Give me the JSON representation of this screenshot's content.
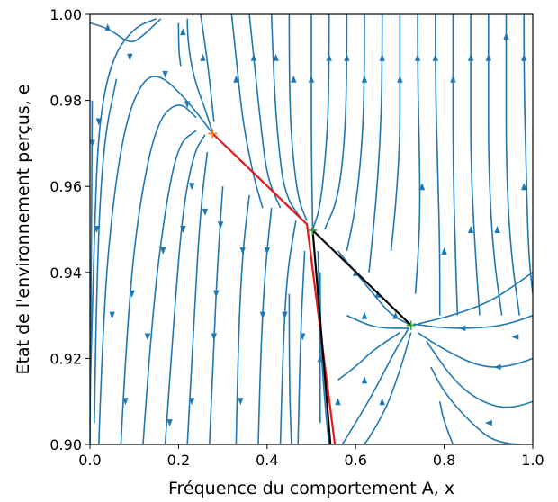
{
  "chart_data": {
    "type": "streamplot",
    "xlabel": "Fréquence du comportement A, x",
    "ylabel": "Etat de l'environnement perçus, e",
    "xlim": [
      0.0,
      1.0
    ],
    "ylim": [
      0.9,
      1.0
    ],
    "x_ticks": [
      "0.0",
      "0.2",
      "0.4",
      "0.6",
      "0.8",
      "1.0"
    ],
    "y_ticks": [
      "0.90",
      "0.92",
      "0.94",
      "0.96",
      "0.98",
      "1.00"
    ],
    "x_tick_values": [
      0.0,
      0.2,
      0.4,
      0.6,
      0.8,
      1.0
    ],
    "y_tick_values": [
      0.9,
      0.92,
      0.94,
      0.96,
      0.98,
      1.0
    ],
    "grid": false,
    "colors": {
      "stream": "#1f77b4",
      "red_path": "#e31a1c",
      "black_path": "#000000",
      "marker": "#2ca02c",
      "marker_orange": "#ff7f0e"
    },
    "series": [
      {
        "color": "#e31a1c",
        "points": [
          [
            0.277,
            0.9723
          ],
          [
            0.49,
            0.9512
          ],
          [
            0.553,
            0.9
          ]
        ]
      },
      {
        "color": "#000000",
        "points": [
          [
            0.725,
            0.9277
          ],
          [
            0.503,
            0.9498
          ],
          [
            0.543,
            0.9
          ]
        ]
      }
    ],
    "markers": [
      {
        "x": 0.277,
        "y": 0.9723,
        "color": "#ff7f0e",
        "symbol": "+"
      },
      {
        "x": 0.503,
        "y": 0.9498,
        "color": "#2ca02c",
        "symbol": "+"
      },
      {
        "x": 0.725,
        "y": 0.9277,
        "color": "#2ca02c",
        "symbol": "+"
      }
    ],
    "streamlines": [
      [
        [
          0.02,
          0.9
        ],
        [
          0.03,
          0.93
        ],
        [
          0.05,
          0.955
        ],
        [
          0.08,
          0.975
        ],
        [
          0.12,
          0.985
        ],
        [
          0.16,
          0.986
        ],
        [
          0.22,
          0.98
        ],
        [
          0.277,
          0.9723
        ]
      ],
      [
        [
          0.0,
          0.91
        ],
        [
          0.01,
          0.95
        ],
        [
          0.02,
          0.975
        ],
        [
          0.05,
          0.99
        ],
        [
          0.1,
          0.997
        ],
        [
          0.15,
          0.999
        ]
      ],
      [
        [
          0.07,
          0.9
        ],
        [
          0.085,
          0.93
        ],
        [
          0.11,
          0.955
        ],
        [
          0.15,
          0.975
        ],
        [
          0.2,
          0.98
        ],
        [
          0.24,
          0.976
        ]
      ],
      [
        [
          0.12,
          0.9
        ],
        [
          0.14,
          0.93
        ],
        [
          0.17,
          0.955
        ],
        [
          0.2,
          0.97
        ],
        [
          0.24,
          0.973
        ]
      ],
      [
        [
          0.17,
          0.9
        ],
        [
          0.19,
          0.93
        ],
        [
          0.21,
          0.955
        ],
        [
          0.235,
          0.968
        ],
        [
          0.26,
          0.972
        ]
      ],
      [
        [
          0.22,
          0.9
        ],
        [
          0.235,
          0.93
        ],
        [
          0.25,
          0.955
        ],
        [
          0.265,
          0.968
        ]
      ],
      [
        [
          0.27,
          0.9
        ],
        [
          0.28,
          0.925
        ],
        [
          0.29,
          0.945
        ],
        [
          0.3,
          0.96
        ]
      ],
      [
        [
          0.33,
          0.9
        ],
        [
          0.335,
          0.925
        ],
        [
          0.345,
          0.945
        ],
        [
          0.36,
          0.958
        ]
      ],
      [
        [
          0.38,
          0.9
        ],
        [
          0.385,
          0.92
        ],
        [
          0.395,
          0.94
        ],
        [
          0.41,
          0.955
        ]
      ],
      [
        [
          0.43,
          0.9
        ],
        [
          0.435,
          0.92
        ],
        [
          0.445,
          0.94
        ],
        [
          0.465,
          0.952
        ]
      ],
      [
        [
          0.52,
          0.905
        ],
        [
          0.52,
          0.925
        ],
        [
          0.515,
          0.945
        ]
      ],
      [
        [
          0.47,
          0.9
        ],
        [
          0.475,
          0.925
        ],
        [
          0.485,
          0.945
        ]
      ],
      [
        [
          0.01,
          0.905
        ],
        [
          0.015,
          0.94
        ],
        [
          0.03,
          0.97
        ],
        [
          0.06,
          0.985
        ]
      ],
      [
        [
          0.0,
          0.9
        ],
        [
          0.003,
          0.94
        ],
        [
          0.005,
          0.98
        ]
      ],
      [
        [
          0.0,
          0.998
        ],
        [
          0.04,
          0.997
        ],
        [
          0.09,
          0.993
        ],
        [
          0.12,
          0.995
        ],
        [
          0.16,
          0.999
        ]
      ],
      [
        [
          0.22,
          0.999
        ],
        [
          0.22,
          0.994
        ],
        [
          0.235,
          0.985
        ],
        [
          0.26,
          0.978
        ],
        [
          0.277,
          0.9725
        ]
      ],
      [
        [
          0.25,
          1.0
        ],
        [
          0.26,
          0.993
        ],
        [
          0.27,
          0.985
        ],
        [
          0.28,
          0.975
        ]
      ],
      [
        [
          0.2,
          0.998
        ],
        [
          0.2,
          0.992
        ],
        [
          0.205,
          0.988
        ]
      ],
      [
        [
          0.32,
          1.0
        ],
        [
          0.33,
          0.99
        ],
        [
          0.345,
          0.975
        ],
        [
          0.37,
          0.962
        ],
        [
          0.39,
          0.955
        ]
      ],
      [
        [
          0.36,
          1.0
        ],
        [
          0.37,
          0.99
        ],
        [
          0.385,
          0.975
        ],
        [
          0.4,
          0.962
        ],
        [
          0.43,
          0.955
        ]
      ],
      [
        [
          0.41,
          1.0
        ],
        [
          0.415,
          0.985
        ],
        [
          0.425,
          0.97
        ],
        [
          0.44,
          0.958
        ],
        [
          0.48,
          0.952
        ]
      ],
      [
        [
          0.45,
          1.0
        ],
        [
          0.45,
          0.985
        ],
        [
          0.455,
          0.97
        ],
        [
          0.47,
          0.957
        ],
        [
          0.49,
          0.952
        ]
      ],
      [
        [
          0.5,
          1.0
        ],
        [
          0.5,
          0.985
        ],
        [
          0.5,
          0.97
        ],
        [
          0.503,
          0.95
        ]
      ],
      [
        [
          0.54,
          1.0
        ],
        [
          0.54,
          0.985
        ],
        [
          0.535,
          0.97
        ],
        [
          0.52,
          0.955
        ],
        [
          0.503,
          0.95
        ]
      ],
      [
        [
          0.58,
          1.0
        ],
        [
          0.58,
          0.985
        ],
        [
          0.575,
          0.97
        ],
        [
          0.56,
          0.957
        ],
        [
          0.53,
          0.95
        ]
      ],
      [
        [
          0.62,
          1.0
        ],
        [
          0.62,
          0.985
        ],
        [
          0.615,
          0.97
        ],
        [
          0.6,
          0.955
        ],
        [
          0.58,
          0.945
        ]
      ],
      [
        [
          0.66,
          1.0
        ],
        [
          0.66,
          0.985
        ],
        [
          0.655,
          0.97
        ],
        [
          0.645,
          0.955
        ],
        [
          0.63,
          0.94
        ]
      ],
      [
        [
          0.7,
          1.0
        ],
        [
          0.7,
          0.985
        ],
        [
          0.7,
          0.97
        ],
        [
          0.69,
          0.955
        ],
        [
          0.68,
          0.945
        ]
      ],
      [
        [
          0.74,
          1.0
        ],
        [
          0.74,
          0.985
        ],
        [
          0.745,
          0.965
        ],
        [
          0.745,
          0.95
        ],
        [
          0.735,
          0.935
        ]
      ],
      [
        [
          0.78,
          1.0
        ],
        [
          0.78,
          0.985
        ],
        [
          0.785,
          0.965
        ],
        [
          0.79,
          0.945
        ],
        [
          0.79,
          0.93
        ]
      ],
      [
        [
          0.82,
          1.0
        ],
        [
          0.82,
          0.985
        ],
        [
          0.82,
          0.965
        ],
        [
          0.825,
          0.945
        ],
        [
          0.83,
          0.93
        ]
      ],
      [
        [
          0.86,
          1.0
        ],
        [
          0.86,
          0.985
        ],
        [
          0.86,
          0.965
        ],
        [
          0.87,
          0.945
        ],
        [
          0.88,
          0.93
        ]
      ],
      [
        [
          0.9,
          1.0
        ],
        [
          0.9,
          0.985
        ],
        [
          0.9,
          0.965
        ],
        [
          0.91,
          0.945
        ],
        [
          0.93,
          0.93
        ]
      ],
      [
        [
          0.94,
          1.0
        ],
        [
          0.94,
          0.985
        ],
        [
          0.94,
          0.965
        ],
        [
          0.95,
          0.945
        ],
        [
          0.97,
          0.93
        ]
      ],
      [
        [
          0.98,
          1.0
        ],
        [
          0.98,
          0.985
        ],
        [
          0.985,
          0.965
        ],
        [
          0.99,
          0.945
        ],
        [
          1.0,
          0.935
        ]
      ],
      [
        [
          0.56,
          0.945
        ],
        [
          0.6,
          0.94
        ],
        [
          0.64,
          0.935
        ],
        [
          0.68,
          0.93
        ],
        [
          0.72,
          0.928
        ]
      ],
      [
        [
          0.58,
          0.93
        ],
        [
          0.62,
          0.928
        ],
        [
          0.66,
          0.927
        ],
        [
          0.72,
          0.927
        ]
      ],
      [
        [
          0.56,
          0.915
        ],
        [
          0.6,
          0.918
        ],
        [
          0.64,
          0.922
        ],
        [
          0.7,
          0.926
        ]
      ],
      [
        [
          0.57,
          0.9
        ],
        [
          0.6,
          0.905
        ],
        [
          0.64,
          0.912
        ],
        [
          0.69,
          0.922
        ],
        [
          0.72,
          0.927
        ]
      ],
      [
        [
          0.62,
          0.9
        ],
        [
          0.66,
          0.906
        ],
        [
          0.7,
          0.917
        ],
        [
          0.725,
          0.926
        ]
      ],
      [
        [
          1.0,
          0.93
        ],
        [
          0.95,
          0.928
        ],
        [
          0.88,
          0.927
        ],
        [
          0.8,
          0.927
        ],
        [
          0.73,
          0.928
        ]
      ],
      [
        [
          1.0,
          0.92
        ],
        [
          0.95,
          0.918
        ],
        [
          0.88,
          0.918
        ],
        [
          0.8,
          0.922
        ],
        [
          0.74,
          0.926
        ]
      ],
      [
        [
          1.0,
          0.91
        ],
        [
          0.95,
          0.908
        ],
        [
          0.88,
          0.91
        ],
        [
          0.82,
          0.915
        ],
        [
          0.76,
          0.924
        ]
      ],
      [
        [
          0.98,
          0.9
        ],
        [
          0.92,
          0.9
        ],
        [
          0.86,
          0.905
        ],
        [
          0.8,
          0.912
        ],
        [
          0.77,
          0.918
        ]
      ],
      [
        [
          0.82,
          0.9
        ],
        [
          0.8,
          0.905
        ],
        [
          0.79,
          0.91
        ]
      ],
      [
        [
          1.0,
          0.94
        ],
        [
          0.96,
          0.937
        ],
        [
          0.9,
          0.933
        ],
        [
          0.82,
          0.93
        ],
        [
          0.74,
          0.928
        ]
      ],
      [
        [
          0.52,
          0.94
        ],
        [
          0.52,
          0.925
        ],
        [
          0.53,
          0.91
        ],
        [
          0.54,
          0.9
        ]
      ],
      [
        [
          0.45,
          0.935
        ],
        [
          0.45,
          0.915
        ],
        [
          0.455,
          0.9
        ]
      ]
    ],
    "arrows": [
      [
        0.04,
        0.997,
        1
      ],
      [
        0.09,
        0.99,
        0
      ],
      [
        0.17,
        0.986,
        0
      ],
      [
        0.22,
        0.979,
        0
      ],
      [
        0.05,
        0.93,
        0
      ],
      [
        0.015,
        0.95,
        0
      ],
      [
        0.005,
        0.97,
        0
      ],
      [
        0.02,
        0.975,
        0
      ],
      [
        0.095,
        0.935,
        0
      ],
      [
        0.13,
        0.925,
        0
      ],
      [
        0.165,
        0.945,
        0
      ],
      [
        0.21,
        0.95,
        0
      ],
      [
        0.23,
        0.96,
        0
      ],
      [
        0.26,
        0.954,
        0
      ],
      [
        0.285,
        0.935,
        0
      ],
      [
        0.295,
        0.951,
        0
      ],
      [
        0.345,
        0.945,
        0
      ],
      [
        0.39,
        0.93,
        0
      ],
      [
        0.4,
        0.945,
        0
      ],
      [
        0.44,
        0.93,
        0
      ],
      [
        0.48,
        0.925,
        0
      ],
      [
        0.08,
        0.91,
        0
      ],
      [
        0.18,
        0.905,
        0
      ],
      [
        0.23,
        0.91,
        0
      ],
      [
        0.28,
        0.925,
        0
      ],
      [
        0.34,
        0.91,
        0
      ],
      [
        0.37,
        0.99,
        1
      ],
      [
        0.42,
        0.99,
        1
      ],
      [
        0.46,
        0.985,
        1
      ],
      [
        0.5,
        0.985,
        1
      ],
      [
        0.54,
        0.99,
        1
      ],
      [
        0.58,
        0.99,
        1
      ],
      [
        0.62,
        0.985,
        1
      ],
      [
        0.66,
        0.99,
        1
      ],
      [
        0.7,
        0.985,
        1
      ],
      [
        0.74,
        0.99,
        1
      ],
      [
        0.78,
        0.99,
        1
      ],
      [
        0.82,
        0.985,
        1
      ],
      [
        0.86,
        0.99,
        1
      ],
      [
        0.9,
        0.99,
        1
      ],
      [
        0.94,
        0.995,
        1
      ],
      [
        0.98,
        0.99,
        1
      ],
      [
        0.33,
        0.985,
        1
      ],
      [
        0.21,
        0.996,
        1
      ],
      [
        0.255,
        0.99,
        1
      ],
      [
        0.6,
        0.94,
        1
      ],
      [
        0.65,
        0.935,
        1
      ],
      [
        0.69,
        0.93,
        1
      ],
      [
        0.84,
        0.927,
        2
      ],
      [
        0.92,
        0.918,
        2
      ],
      [
        0.9,
        0.905,
        2
      ],
      [
        0.96,
        0.925,
        2
      ],
      [
        0.62,
        0.93,
        1
      ],
      [
        0.75,
        0.96,
        1
      ],
      [
        0.8,
        0.945,
        1
      ],
      [
        0.86,
        0.95,
        1
      ],
      [
        0.92,
        0.95,
        1
      ],
      [
        0.98,
        0.96,
        1
      ],
      [
        0.56,
        0.91,
        1
      ],
      [
        0.62,
        0.915,
        1
      ],
      [
        0.66,
        0.91,
        1
      ],
      [
        0.52,
        0.92,
        1
      ]
    ]
  }
}
